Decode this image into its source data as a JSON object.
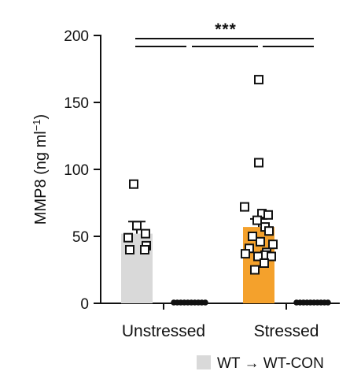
{
  "chart_data": {
    "type": "bar",
    "title": "",
    "xlabel": "",
    "ylabel": "MMP8 (ng ml",
    "ylabel_sup": "−1",
    "ylabel_close": ")",
    "ylim": [
      0,
      200
    ],
    "yticks": [
      0,
      50,
      100,
      150,
      200
    ],
    "ytick_labels": [
      "0",
      "50",
      "100",
      "150",
      "200"
    ],
    "categories": [
      "Unstressed",
      "Stressed"
    ],
    "significance": "***",
    "series": [
      {
        "name": "WT → WT-CON",
        "color": "#d9d9d9",
        "marker": "open-square",
        "values": [
          52,
          57
        ],
        "sem": [
          9,
          6
        ],
        "points": [
          [
            89,
            58,
            52,
            49,
            43,
            40,
            40
          ],
          [
            167,
            105,
            72,
            67,
            66,
            62,
            57,
            54,
            50,
            46,
            44,
            41,
            38,
            37,
            36,
            35,
            35,
            30,
            25
          ]
        ]
      },
      {
        "name": "",
        "color": "#f4a12c",
        "marker": "filled-circle",
        "values": [
          0,
          0
        ],
        "sem": [
          0,
          0
        ],
        "points": [
          [
            0,
            0,
            0,
            0,
            0,
            0,
            0,
            0,
            0,
            0
          ],
          [
            0,
            0,
            0,
            0,
            0,
            0,
            0,
            0,
            0,
            0
          ]
        ]
      }
    ],
    "bar_colors": [
      [
        "#d9d9d9",
        "#f4a12c"
      ],
      [
        "#f4a12c",
        "#f4a12c"
      ]
    ],
    "legend": {
      "position": "bottom-right",
      "items": [
        {
          "label": "WT → WT-CON",
          "color": "#d9d9d9"
        }
      ]
    },
    "grid": false
  }
}
